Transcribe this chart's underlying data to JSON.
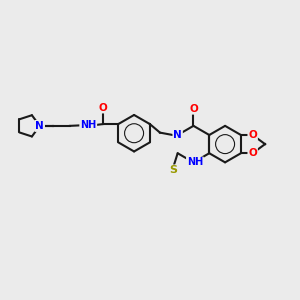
{
  "bg_color": "#ebebeb",
  "bond_color": "#1a1a1a",
  "atom_colors": {
    "N": "#0000ff",
    "O": "#ff0000",
    "S": "#999900",
    "C": "#1a1a1a"
  },
  "lw": 1.5
}
